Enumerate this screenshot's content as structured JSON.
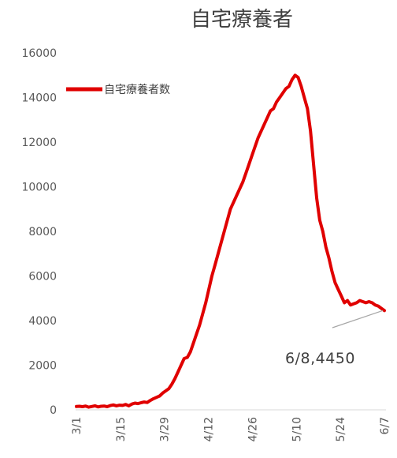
{
  "chart_data": {
    "type": "line",
    "title": "自宅療養者",
    "xlabel": "",
    "ylabel": "",
    "ylim": [
      0,
      16000
    ],
    "yticks": [
      0,
      2000,
      4000,
      6000,
      8000,
      10000,
      12000,
      14000,
      16000
    ],
    "xticks": [
      "3/1",
      "3/15",
      "3/29",
      "4/12",
      "4/26",
      "5/10",
      "5/24",
      "6/7"
    ],
    "legend": {
      "position": "top-left",
      "entries": [
        "自宅療養者数"
      ]
    },
    "grid": false,
    "series_color": "#e00000",
    "series": [
      {
        "name": "自宅療養者数",
        "x": [
          0,
          1,
          2,
          3,
          4,
          5,
          6,
          7,
          8,
          9,
          10,
          11,
          12,
          13,
          14,
          15,
          16,
          17,
          18,
          19,
          20,
          21,
          22,
          23,
          24,
          25,
          26,
          27,
          28,
          29,
          30,
          31,
          32,
          33,
          34,
          35,
          36,
          37,
          38,
          39,
          40,
          41,
          42,
          43,
          44,
          45,
          46,
          47,
          48,
          49,
          50,
          51,
          52,
          53,
          54,
          55,
          56,
          57,
          58,
          59,
          60,
          61,
          62,
          63,
          64,
          65,
          66,
          67,
          68,
          69,
          70,
          71,
          72,
          73,
          74,
          75,
          76,
          77,
          78,
          79,
          80,
          81,
          82,
          83,
          84,
          85,
          86,
          87,
          88,
          89,
          90,
          91,
          92,
          93,
          94,
          95,
          96,
          97,
          98,
          99,
          100
        ],
        "values": [
          150,
          160,
          140,
          170,
          120,
          150,
          180,
          130,
          160,
          170,
          140,
          190,
          220,
          180,
          210,
          200,
          240,
          180,
          260,
          300,
          280,
          320,
          350,
          330,
          420,
          500,
          560,
          620,
          750,
          850,
          950,
          1150,
          1400,
          1700,
          2000,
          2300,
          2350,
          2600,
          3000,
          3400,
          3800,
          4300,
          4800,
          5400,
          6000,
          6500,
          7000,
          7500,
          8000,
          8500,
          9000,
          9300,
          9600,
          9900,
          10200,
          10600,
          11000,
          11400,
          11800,
          12200,
          12500,
          12800,
          13100,
          13400,
          13500,
          13800,
          14000,
          14200,
          14400,
          14500,
          14800,
          15000,
          14900,
          14500,
          14000,
          13500,
          12500,
          11000,
          9500,
          8500,
          8000,
          7300,
          6800,
          6200,
          5700,
          5400,
          5100,
          4800,
          4900,
          4700,
          4750,
          4800,
          4900,
          4850,
          4800,
          4850,
          4800,
          4700,
          4650,
          4550,
          4450
        ]
      }
    ],
    "annotation": {
      "text": "6/8,4450",
      "x": 100,
      "y": 4450
    }
  }
}
